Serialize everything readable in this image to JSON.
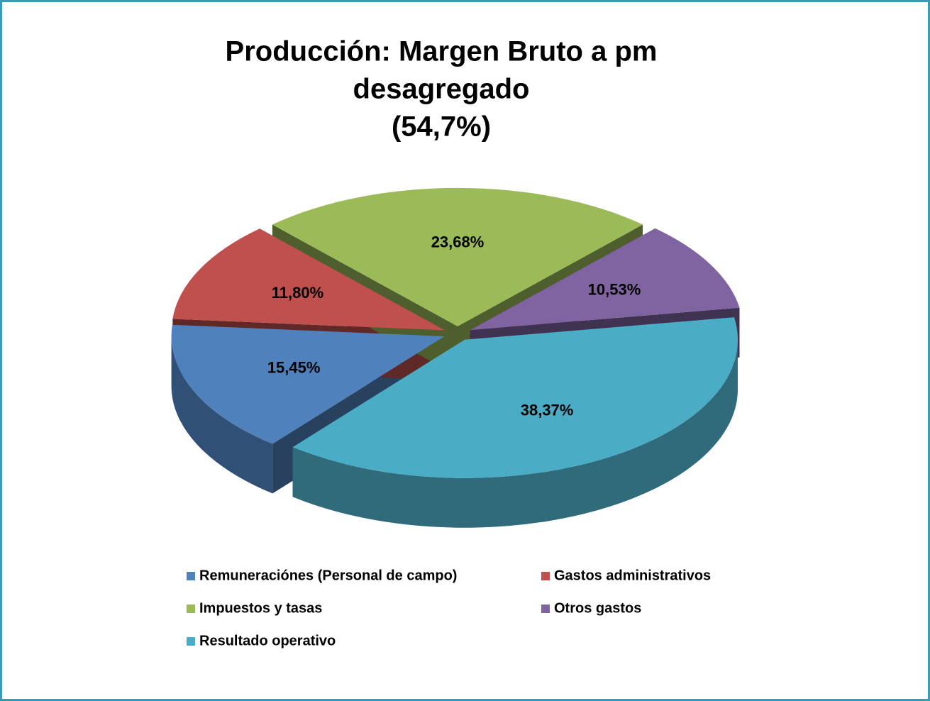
{
  "chart_data": {
    "type": "pie3d",
    "title": [
      "Producción: Margen Bruto a pm",
      "desagregado",
      "(54,7%)"
    ],
    "categories": [
      "Remuneraciónes (Personal de campo)",
      "Gastos administrativos",
      "Impuestos y tasas",
      "Otros gastos",
      "Resultado operativo"
    ],
    "values": [
      15.45,
      11.8,
      23.68,
      10.53,
      38.37
    ],
    "value_labels": [
      "15,45%",
      "11,80%",
      "23,68%",
      "10,53%",
      "38,37%"
    ],
    "colors": [
      "#4f81bd",
      "#c0504d",
      "#9bbb59",
      "#8064a2",
      "#4bacc6"
    ],
    "legend": "bottom"
  }
}
